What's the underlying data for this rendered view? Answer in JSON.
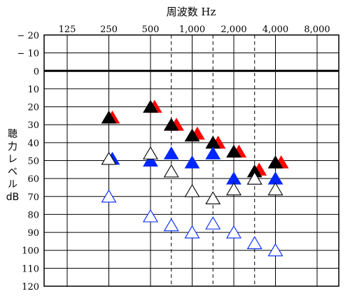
{
  "chart_data": {
    "type": "scatter",
    "title": "周波数 Hz",
    "ylabel": "聴力レベル dB",
    "y_axis_label_lines": [
      "聴",
      "力",
      "レ",
      "ベ",
      "ル",
      "dB"
    ],
    "x_categories": [
      125,
      250,
      500,
      1000,
      2000,
      4000,
      8000
    ],
    "x_tick_labels": [
      "125",
      "250",
      "500",
      "1,000",
      "2,000",
      "4,000",
      "8,000"
    ],
    "y_ticks": [
      -20,
      -10,
      0,
      10,
      20,
      30,
      40,
      50,
      60,
      70,
      80,
      90,
      100,
      110,
      120
    ],
    "y_tick_labels": [
      "− 20",
      "− 10",
      "0",
      "10",
      "20",
      "30",
      "40",
      "50",
      "60",
      "70",
      "80",
      "90",
      "100",
      "110",
      "120"
    ],
    "ylim": [
      -20,
      120
    ],
    "y_inverted": true,
    "x_scale": "log2",
    "grid": true,
    "series": [
      {
        "marker": "triangle-filled",
        "color": "#ff0000",
        "points": [
          [
            265,
            26
          ],
          [
            535,
            20
          ],
          [
            770,
            30
          ],
          [
            1090,
            35
          ],
          [
            1540,
            40
          ],
          [
            2180,
            45
          ],
          [
            3050,
            55
          ],
          [
            4400,
            51
          ]
        ]
      },
      {
        "marker": "triangle-filled",
        "color": "#000000",
        "points": [
          [
            250,
            26
          ],
          [
            500,
            20
          ],
          [
            707,
            30
          ],
          [
            1000,
            36
          ],
          [
            1414,
            40
          ],
          [
            2000,
            45
          ],
          [
            2828,
            56
          ],
          [
            4000,
            51
          ]
        ]
      },
      {
        "marker": "triangle-filled",
        "color": "#0026ff",
        "points": [
          [
            265,
            49
          ],
          [
            500,
            50
          ],
          [
            707,
            46
          ],
          [
            1000,
            51
          ],
          [
            1414,
            46
          ],
          [
            2000,
            60
          ],
          [
            2828,
            60
          ],
          [
            4000,
            60
          ]
        ]
      },
      {
        "marker": "triangle-open",
        "color": "#000000",
        "points": [
          [
            250,
            49
          ],
          [
            500,
            46
          ],
          [
            707,
            56
          ],
          [
            1000,
            67
          ],
          [
            1414,
            71
          ],
          [
            2000,
            66
          ],
          [
            2828,
            60
          ],
          [
            4000,
            66
          ]
        ]
      },
      {
        "marker": "triangle-open",
        "color": "#0026ff",
        "points": [
          [
            250,
            70
          ],
          [
            500,
            81
          ],
          [
            707,
            86
          ],
          [
            1000,
            90
          ],
          [
            1414,
            85
          ],
          [
            2000,
            90
          ],
          [
            2828,
            96
          ],
          [
            4000,
            100
          ]
        ]
      }
    ]
  }
}
